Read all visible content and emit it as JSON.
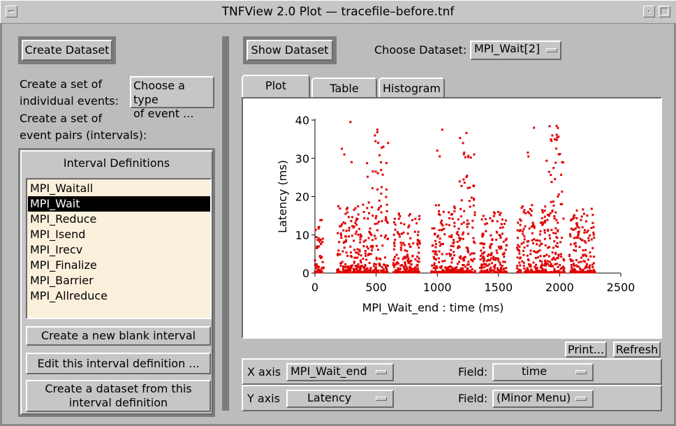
{
  "window": {
    "title": "TNFView 2.0 Plot — tracefile–before.tnf"
  },
  "left_panel": {
    "create_dataset_label": "Create Dataset",
    "individual_events_label_line1": "Create a set of",
    "individual_events_label_line2": "individual events:",
    "choose_type_line1": "Choose a type",
    "choose_type_line2": "of event ...",
    "event_pairs_label_line1": "Create a set of",
    "event_pairs_label_line2": "event pairs (intervals):",
    "interval_definitions_title": "Interval Definitions",
    "interval_items": [
      "MPI_Waitall",
      "MPI_Wait",
      "MPI_Reduce",
      "MPI_Isend",
      "MPI_Irecv",
      "MPI_Finalize",
      "MPI_Barrier",
      "MPI_Allreduce"
    ],
    "selected_item": "MPI_Wait",
    "new_interval_label": "Create a new blank interval",
    "edit_interval_label": "Edit this interval definition ...",
    "create_from_interval_line1": "Create a dataset from this",
    "create_from_interval_line2": "interval definition"
  },
  "right_panel": {
    "show_dataset_label": "Show Dataset",
    "choose_dataset_label": "Choose Dataset:",
    "choose_dataset_value": "MPI_Wait[2]",
    "tabs": [
      "Plot",
      "Table",
      "Histogram"
    ],
    "active_tab": "Plot",
    "print_label": "Print...",
    "refresh_label": "Refresh",
    "x_axis_label": "X axis",
    "x_axis_value": "MPI_Wait_end",
    "x_field_label": "Field:",
    "x_field_value": "time",
    "y_axis_label": "Y axis",
    "y_axis_value": "Latency",
    "y_field_label": "Field:",
    "y_field_value": "(Minor Menu)"
  },
  "colors": {
    "point": "#e00000",
    "background": "#bcbcbc",
    "list_background": "#fbf0dc"
  },
  "chart_data": {
    "type": "scatter",
    "xlabel": "MPI_Wait_end : time (ms)",
    "ylabel": "Latency (ms)",
    "xlim": [
      0,
      2500
    ],
    "ylim": [
      0,
      40
    ],
    "x_ticks": [
      "0",
      "500",
      "1000",
      "1500",
      "2000",
      "2500"
    ],
    "y_ticks": [
      "0",
      "10",
      "20",
      "30",
      "40"
    ],
    "series": [
      {
        "clusters": [
          {
            "x_range": [
              0,
              70
            ],
            "max_latency": 14
          },
          {
            "x_range": [
              180,
              420
            ],
            "max_latency": 18
          },
          {
            "x_range": [
              420,
              600
            ],
            "max_latency": 38
          },
          {
            "x_range": [
              640,
              860
            ],
            "max_latency": 17
          },
          {
            "x_range": [
              950,
              1180
            ],
            "max_latency": 18
          },
          {
            "x_range": [
              1180,
              1310
            ],
            "max_latency": 37
          },
          {
            "x_range": [
              1350,
              1570
            ],
            "max_latency": 16
          },
          {
            "x_range": [
              1650,
              1890
            ],
            "max_latency": 18
          },
          {
            "x_range": [
              1890,
              2040
            ],
            "max_latency": 39
          },
          {
            "x_range": [
              2080,
              2290
            ],
            "max_latency": 17
          }
        ],
        "outliers": [
          {
            "x": 30,
            "y": 12
          },
          {
            "x": 220,
            "y": 32.5
          },
          {
            "x": 240,
            "y": 31
          },
          {
            "x": 290,
            "y": 39.5
          },
          {
            "x": 300,
            "y": 29
          },
          {
            "x": 490,
            "y": 36
          },
          {
            "x": 495,
            "y": 34.5
          },
          {
            "x": 510,
            "y": 37.5
          },
          {
            "x": 1000,
            "y": 32
          },
          {
            "x": 1020,
            "y": 30.5
          },
          {
            "x": 1040,
            "y": 37.5
          },
          {
            "x": 1210,
            "y": 34
          },
          {
            "x": 1220,
            "y": 31.5
          },
          {
            "x": 1740,
            "y": 31.5
          },
          {
            "x": 1745,
            "y": 30.5
          },
          {
            "x": 1790,
            "y": 38
          },
          {
            "x": 1940,
            "y": 36
          },
          {
            "x": 1960,
            "y": 35
          },
          {
            "x": 1975,
            "y": 38.5
          }
        ]
      }
    ]
  }
}
